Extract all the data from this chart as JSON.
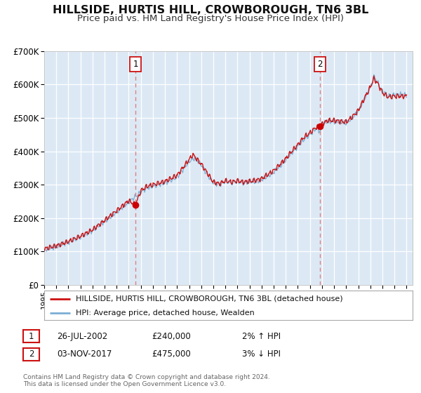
{
  "title": "HILLSIDE, HURTIS HILL, CROWBOROUGH, TN6 3BL",
  "subtitle": "Price paid vs. HM Land Registry's House Price Index (HPI)",
  "title_fontsize": 11.5,
  "subtitle_fontsize": 9.5,
  "bg_color": "#dce9f5",
  "fig_bg_color": "#ffffff",
  "ylim": [
    0,
    700000
  ],
  "xlim_start": 1995.0,
  "xlim_end": 2025.5,
  "yticks": [
    0,
    100000,
    200000,
    300000,
    400000,
    500000,
    600000,
    700000
  ],
  "ytick_labels": [
    "£0",
    "£100K",
    "£200K",
    "£300K",
    "£400K",
    "£500K",
    "£600K",
    "£700K"
  ],
  "xticks": [
    1995,
    1996,
    1997,
    1998,
    1999,
    2000,
    2001,
    2002,
    2003,
    2004,
    2005,
    2006,
    2007,
    2008,
    2009,
    2010,
    2011,
    2012,
    2013,
    2014,
    2015,
    2016,
    2017,
    2018,
    2019,
    2020,
    2021,
    2022,
    2023,
    2024,
    2025
  ],
  "sale1_x": 2002.57,
  "sale1_y": 240000,
  "sale2_x": 2017.84,
  "sale2_y": 475000,
  "vline1_x": 2002.57,
  "vline2_x": 2017.84,
  "marker_color": "#cc0000",
  "marker_size": 7,
  "line1_color": "#cc1111",
  "line2_color": "#7bafd4",
  "legend_label1": "HILLSIDE, HURTIS HILL, CROWBOROUGH, TN6 3BL (detached house)",
  "legend_label2": "HPI: Average price, detached house, Wealden",
  "footer1": "Contains HM Land Registry data © Crown copyright and database right 2024.",
  "footer2": "This data is licensed under the Open Government Licence v3.0.",
  "table_row1": [
    "1",
    "26-JUL-2002",
    "£240,000",
    "2% ↑ HPI"
  ],
  "table_row2": [
    "2",
    "03-NOV-2017",
    "£475,000",
    "3% ↓ HPI"
  ]
}
